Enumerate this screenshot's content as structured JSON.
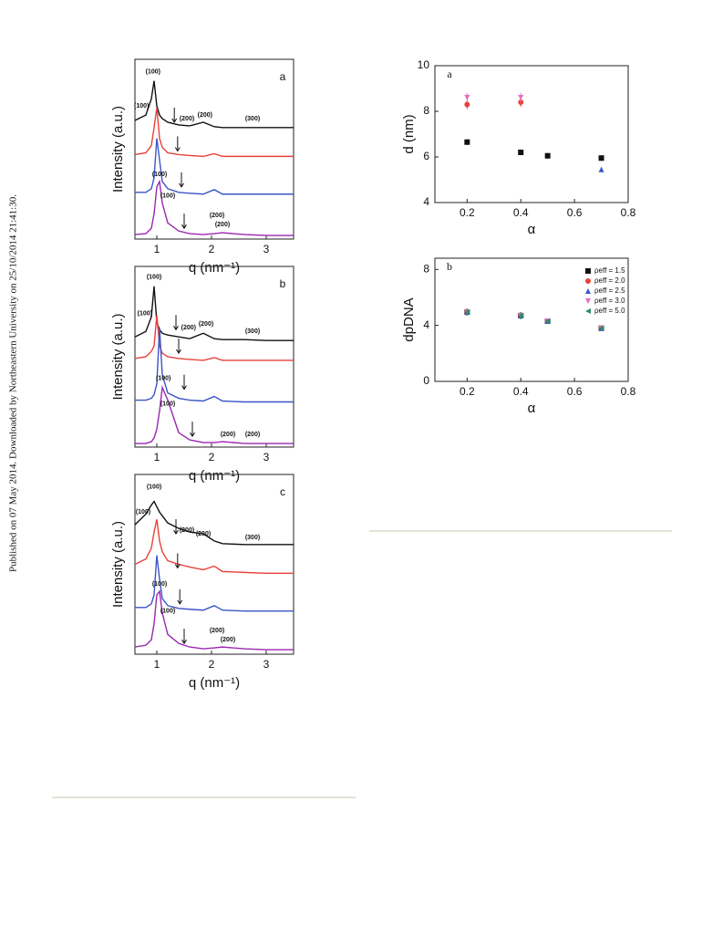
{
  "side_note": "Published on 07 May 2014. Downloaded by Northeastern University on 25/10/2014 21:41:30.",
  "chart_data": [
    {
      "type": "line",
      "panel_label": "a",
      "x_label": "q (nm⁻¹)",
      "y_label": "Intensity (a.u.)",
      "xlim": [
        0.6,
        3.5
      ],
      "ylim": [
        0,
        10
      ],
      "xticks": [
        1,
        2,
        3
      ],
      "x": [
        0.6,
        0.8,
        0.9,
        0.95,
        1.0,
        1.05,
        1.1,
        1.2,
        1.4,
        1.6,
        1.85,
        2.05,
        2.2,
        2.6,
        3.0,
        3.5
      ],
      "series": [
        {
          "color": "#111111",
          "values": [
            6.6,
            6.9,
            7.8,
            8.8,
            7.4,
            6.9,
            6.7,
            6.5,
            6.35,
            6.3,
            6.5,
            6.25,
            6.2,
            6.2,
            6.2,
            6.2
          ]
        },
        {
          "color": "#e8413a",
          "values": [
            4.7,
            4.8,
            5.2,
            6.2,
            7.3,
            5.6,
            5.1,
            4.8,
            4.7,
            4.65,
            4.6,
            4.75,
            4.6,
            4.6,
            4.6,
            4.6
          ]
        },
        {
          "color": "#3a55c8",
          "values": [
            2.6,
            2.6,
            2.8,
            3.4,
            5.6,
            4.4,
            3.2,
            2.8,
            2.6,
            2.55,
            2.5,
            2.75,
            2.5,
            2.5,
            2.5,
            2.5
          ]
        },
        {
          "color": "#9b27b0",
          "values": [
            0.25,
            0.3,
            0.6,
            1.4,
            2.9,
            3.2,
            2.0,
            0.9,
            0.45,
            0.3,
            0.25,
            0.3,
            0.35,
            0.25,
            0.2,
            0.2
          ]
        }
      ],
      "annotations": [
        {
          "text": "(100)",
          "x": 0.93,
          "y": 9.3,
          "color": "#111111"
        },
        {
          "text": "(100)",
          "x": 0.72,
          "y": 7.4,
          "color": "#e8413a"
        },
        {
          "text": "(200)",
          "x": 1.55,
          "y": 6.7,
          "color": "#e8413a"
        },
        {
          "text": "(200)",
          "x": 1.88,
          "y": 6.9,
          "color": "#111111"
        },
        {
          "text": "(300)",
          "x": 2.75,
          "y": 6.7,
          "color": "#111111"
        },
        {
          "text": "(100)",
          "x": 1.05,
          "y": 3.6,
          "color": "#111111"
        },
        {
          "text": "(100)",
          "x": 1.2,
          "y": 2.4,
          "color": "#3a55c8"
        },
        {
          "text": "(200)",
          "x": 2.1,
          "y": 1.3,
          "color": "#111111"
        },
        {
          "text": "(200)",
          "x": 2.2,
          "y": 0.8,
          "color": "#3a55c8"
        }
      ],
      "arrows": [
        {
          "x": 1.32,
          "y": 6.5
        },
        {
          "x": 1.38,
          "y": 4.9
        },
        {
          "x": 1.45,
          "y": 2.9
        },
        {
          "x": 1.5,
          "y": 0.6
        }
      ]
    },
    {
      "type": "line",
      "panel_label": "b",
      "x_label": "q (nm⁻¹)",
      "y_label": "Intensity (a.u.)",
      "xlim": [
        0.6,
        3.5
      ],
      "ylim": [
        0,
        10
      ],
      "xticks": [
        1,
        2,
        3
      ],
      "x": [
        0.6,
        0.8,
        0.9,
        0.95,
        1.0,
        1.05,
        1.1,
        1.2,
        1.4,
        1.6,
        1.85,
        2.05,
        2.2,
        2.6,
        3.0,
        3.5
      ],
      "series": [
        {
          "color": "#111111",
          "values": [
            6.1,
            6.4,
            7.2,
            8.9,
            6.9,
            6.5,
            6.3,
            6.2,
            6.1,
            6.0,
            6.3,
            6.0,
            5.95,
            5.95,
            5.9,
            5.9
          ]
        },
        {
          "color": "#e8413a",
          "values": [
            4.9,
            5.0,
            5.3,
            5.6,
            7.3,
            5.6,
            5.2,
            5.0,
            4.9,
            4.85,
            4.8,
            4.95,
            4.8,
            4.8,
            4.8,
            4.8
          ]
        },
        {
          "color": "#3a55c8",
          "values": [
            2.6,
            2.6,
            2.7,
            2.9,
            3.5,
            6.6,
            4.0,
            3.0,
            2.7,
            2.6,
            2.55,
            2.8,
            2.55,
            2.5,
            2.5,
            2.5
          ]
        },
        {
          "color": "#9b27b0",
          "values": [
            0.2,
            0.2,
            0.3,
            0.5,
            1.0,
            2.0,
            3.3,
            2.6,
            0.8,
            0.4,
            0.25,
            0.25,
            0.3,
            0.2,
            0.2,
            0.2
          ]
        }
      ],
      "annotations": [
        {
          "text": "(100)",
          "x": 0.95,
          "y": 9.4,
          "color": "#111111"
        },
        {
          "text": "(100)",
          "x": 0.78,
          "y": 7.4,
          "color": "#e8413a"
        },
        {
          "text": "(200)",
          "x": 1.58,
          "y": 6.6,
          "color": "#e8413a"
        },
        {
          "text": "(200)",
          "x": 1.9,
          "y": 6.8,
          "color": "#111111"
        },
        {
          "text": "(300)",
          "x": 2.75,
          "y": 6.4,
          "color": "#111111"
        },
        {
          "text": "(100)",
          "x": 1.12,
          "y": 3.8,
          "color": "#111111"
        },
        {
          "text": "(100)",
          "x": 1.2,
          "y": 2.4,
          "color": "#3a55c8"
        },
        {
          "text": "(200)",
          "x": 2.3,
          "y": 0.7,
          "color": "#111111"
        },
        {
          "text": "(200)",
          "x": 2.75,
          "y": 0.7,
          "color": "#3a55c8"
        }
      ],
      "arrows": [
        {
          "x": 1.35,
          "y": 6.5
        },
        {
          "x": 1.4,
          "y": 5.2
        },
        {
          "x": 1.5,
          "y": 3.2
        },
        {
          "x": 1.65,
          "y": 0.6
        }
      ]
    },
    {
      "type": "line",
      "panel_label": "c",
      "x_label": "q (nm⁻¹)",
      "y_label": "Intensity (a.u.)",
      "xlim": [
        0.6,
        3.5
      ],
      "ylim": [
        0,
        10
      ],
      "xticks": [
        1,
        2,
        3
      ],
      "x": [
        0.6,
        0.8,
        0.9,
        0.95,
        1.0,
        1.05,
        1.1,
        1.2,
        1.4,
        1.6,
        1.85,
        2.05,
        2.2,
        2.6,
        3.0,
        3.5
      ],
      "series": [
        {
          "color": "#111111",
          "values": [
            7.2,
            7.8,
            8.3,
            8.5,
            8.2,
            7.9,
            7.7,
            7.3,
            7.0,
            6.8,
            6.7,
            6.3,
            6.15,
            6.1,
            6.1,
            6.1
          ]
        },
        {
          "color": "#e8413a",
          "values": [
            5.0,
            5.3,
            5.9,
            6.8,
            7.5,
            6.3,
            5.7,
            5.2,
            5.0,
            4.85,
            4.7,
            4.9,
            4.6,
            4.55,
            4.5,
            4.5
          ]
        },
        {
          "color": "#3a55c8",
          "values": [
            2.6,
            2.6,
            2.8,
            3.3,
            5.5,
            4.2,
            3.1,
            2.7,
            2.55,
            2.5,
            2.45,
            2.7,
            2.45,
            2.4,
            2.4,
            2.4
          ]
        },
        {
          "color": "#9b27b0",
          "values": [
            0.4,
            0.5,
            0.8,
            1.7,
            3.3,
            3.5,
            2.3,
            1.1,
            0.6,
            0.4,
            0.3,
            0.35,
            0.4,
            0.3,
            0.25,
            0.25
          ]
        }
      ],
      "annotations": [
        {
          "text": "(100)",
          "x": 0.95,
          "y": 9.3,
          "color": "#111111"
        },
        {
          "text": "(100)",
          "x": 0.75,
          "y": 7.9,
          "color": "#e8413a"
        },
        {
          "text": "(200)",
          "x": 1.55,
          "y": 6.9,
          "color": "#e8413a"
        },
        {
          "text": "(200)",
          "x": 1.85,
          "y": 6.7,
          "color": "#111111"
        },
        {
          "text": "(300)",
          "x": 2.75,
          "y": 6.5,
          "color": "#111111"
        },
        {
          "text": "(100)",
          "x": 1.05,
          "y": 3.9,
          "color": "#111111"
        },
        {
          "text": "(100)",
          "x": 1.2,
          "y": 2.4,
          "color": "#3a55c8"
        },
        {
          "text": "(200)",
          "x": 2.1,
          "y": 1.3,
          "color": "#111111"
        },
        {
          "text": "(200)",
          "x": 2.3,
          "y": 0.8,
          "color": "#3a55c8"
        }
      ],
      "arrows": [
        {
          "x": 1.35,
          "y": 6.7
        },
        {
          "x": 1.38,
          "y": 4.8
        },
        {
          "x": 1.42,
          "y": 2.8
        },
        {
          "x": 1.5,
          "y": 0.6
        }
      ]
    },
    {
      "type": "scatter",
      "panel_label": "a",
      "x_label": "α",
      "y_label": "d (nm)",
      "xlim": [
        0.08,
        0.8
      ],
      "ylim": [
        4,
        10
      ],
      "xticks": [
        0.2,
        0.4,
        0.6,
        0.8
      ],
      "yticks": [
        4,
        6,
        8,
        10
      ],
      "series": [
        {
          "color": "#111111",
          "marker": "square",
          "x": [
            0.2,
            0.4,
            0.5,
            0.7
          ],
          "values": [
            6.65,
            6.2,
            6.05,
            5.95
          ],
          "errors": [
            0.12,
            0.12,
            0.12,
            0.12
          ]
        },
        {
          "color": "#e8413a",
          "marker": "circle",
          "x": [
            0.2,
            0.4
          ],
          "values": [
            8.3,
            8.4
          ],
          "errors": [
            0.2,
            0.2
          ]
        },
        {
          "color": "#e36fc0",
          "marker": "down-triangle",
          "x": [
            0.2,
            0.4
          ],
          "values": [
            8.6,
            8.6
          ],
          "errors": [
            0.2,
            0.2
          ]
        },
        {
          "color": "#3a55c8",
          "marker": "triangle",
          "x": [
            0.7
          ],
          "values": [
            5.45
          ],
          "errors": [
            0.1
          ]
        }
      ]
    },
    {
      "type": "scatter",
      "panel_label": "b",
      "x_label": "α",
      "y_label": "dpDNA",
      "xlim": [
        0.08,
        0.8
      ],
      "ylim": [
        0,
        8.8
      ],
      "xticks": [
        0.2,
        0.4,
        0.6,
        0.8
      ],
      "yticks": [
        0,
        4,
        8
      ],
      "legend": "upper right",
      "series": [
        {
          "name": "ρeff = 1.5",
          "color": "#111111",
          "marker": "square",
          "x": [
            0.2,
            0.4,
            0.5,
            0.7
          ],
          "values": [
            4.95,
            4.7,
            4.3,
            3.8
          ],
          "errors": [
            0.25,
            0.25,
            0.15,
            0.15
          ]
        },
        {
          "name": "ρeff = 2.0",
          "color": "#e8413a",
          "marker": "circle",
          "x": [
            0.2,
            0.4,
            0.5,
            0.7
          ],
          "values": [
            4.95,
            4.7,
            4.3,
            3.8
          ],
          "errors": [
            0.25,
            0.25,
            0.15,
            0.15
          ]
        },
        {
          "name": "ρeff = 2.5",
          "color": "#3a55c8",
          "marker": "triangle",
          "x": [
            0.2,
            0.4,
            0.5,
            0.7
          ],
          "values": [
            4.95,
            4.7,
            4.3,
            3.8
          ],
          "errors": [
            0.25,
            0.25,
            0.15,
            0.15
          ]
        },
        {
          "name": "ρeff = 3.0",
          "color": "#e36fc0",
          "marker": "down-triangle",
          "x": [
            0.2,
            0.4,
            0.5,
            0.7
          ],
          "values": [
            4.95,
            4.7,
            4.3,
            3.8
          ],
          "errors": [
            0.25,
            0.25,
            0.15,
            0.15
          ]
        },
        {
          "name": "ρeff = 5.0",
          "color": "#2e8b6a",
          "marker": "left-triangle",
          "x": [
            0.2,
            0.4,
            0.5,
            0.7
          ],
          "values": [
            4.95,
            4.7,
            4.3,
            3.8
          ],
          "errors": [
            0.25,
            0.25,
            0.15,
            0.15
          ]
        }
      ]
    }
  ]
}
